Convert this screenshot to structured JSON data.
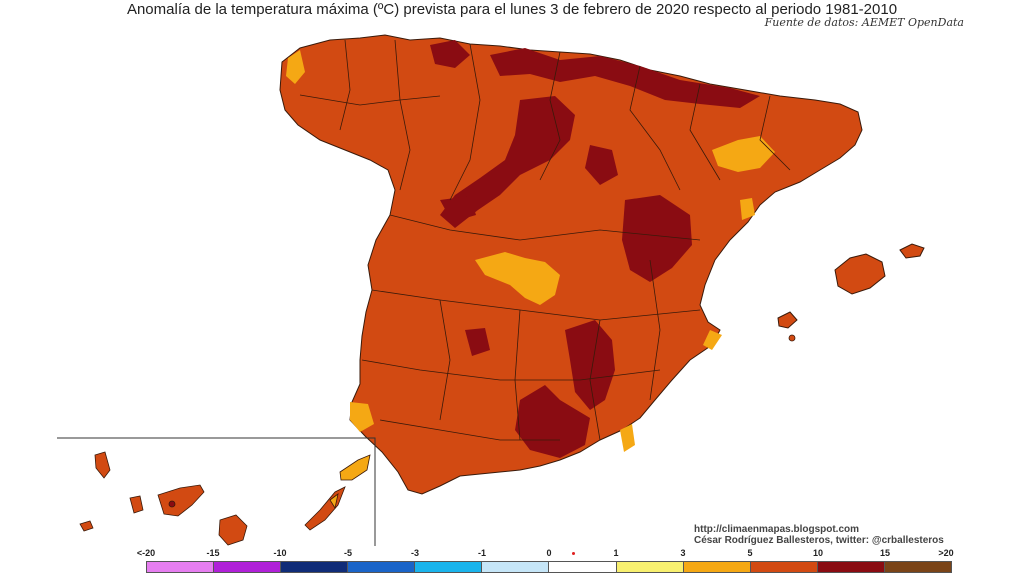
{
  "header": {
    "title": "Anomalía de la temperatura máxima (ºC) prevista para el lunes 3 de febrero de 2020 respecto al periodo 1981-2010",
    "source": "Fuente de datos: AEMET OpenData"
  },
  "credits": {
    "url": "http://climaenmapas.blogspot.com",
    "author": "César Rodríguez Ballesteros, twitter: @crballesteros"
  },
  "legend": {
    "labels": [
      "<-20",
      "-15",
      "-10",
      "-5",
      "-3",
      "-1",
      "0",
      "1",
      "3",
      "5",
      "10",
      "15",
      ">20"
    ],
    "colors": [
      "#e67ef0",
      "#b020d8",
      "#102c78",
      "#1a64c8",
      "#1ab4ec",
      "#c6e6f8",
      "#ffffff",
      "#f8f070",
      "#f5a814",
      "#d24a12",
      "#8a0c12",
      "#7a4418"
    ]
  },
  "map_colors": {
    "base": "#d24a12",
    "hot": "#8a0c12",
    "mild": "#f5a814",
    "border": "#3a1a0a"
  }
}
